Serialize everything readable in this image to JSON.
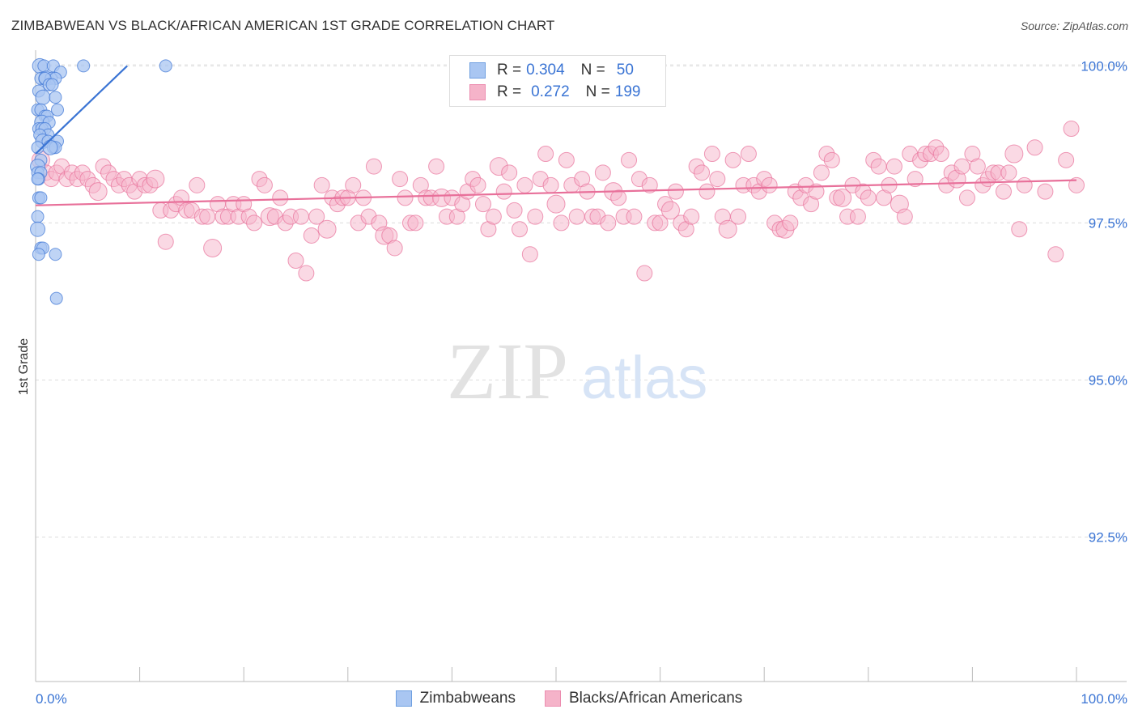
{
  "title": "ZIMBABWEAN VS BLACK/AFRICAN AMERICAN 1ST GRADE CORRELATION CHART",
  "source": "Source: ZipAtlas.com",
  "watermark": {
    "zip": "ZIP",
    "atlas": "atlas"
  },
  "colors": {
    "blue": "#3a74d4",
    "blue_fill": "#a9c6f2",
    "pink": "#e8709a",
    "pink_fill": "#f5b3c9",
    "grid": "#dcdcdc",
    "axis_label": "#3a74d4"
  },
  "legend": {
    "rows": [
      {
        "r_label": "R =",
        "r_value": "0.304",
        "n_label": "N =",
        "n_value": "50"
      },
      {
        "r_label": "R =",
        "r_value": "0.272",
        "n_label": "N =",
        "n_value": "199"
      }
    ]
  },
  "chart_data": {
    "type": "scatter",
    "title": "ZIMBABWEAN VS BLACK/AFRICAN AMERICAN 1ST GRADE CORRELATION CHART",
    "xlabel": "",
    "ylabel": "1st Grade",
    "xlim": [
      0,
      100
    ],
    "ylim": [
      90.2,
      100.25
    ],
    "x_tick_labels": [
      "0.0%",
      "100.0%"
    ],
    "y_ticks": [
      {
        "value": 100.0,
        "label": "100.0%"
      },
      {
        "value": 97.5,
        "label": "97.5%"
      },
      {
        "value": 95.0,
        "label": "95.0%"
      },
      {
        "value": 92.5,
        "label": "92.5%"
      }
    ],
    "series": [
      {
        "name": "Zimbabweans",
        "color": "#3a74d4",
        "fill": "#a9c6f2",
        "r": 0.304,
        "n": 50,
        "trend": {
          "x": [
            0.0,
            8.8
          ],
          "y": [
            98.6,
            100.0
          ]
        },
        "points": [
          [
            0.4,
            100.0
          ],
          [
            0.8,
            100.0
          ],
          [
            1.7,
            100.0
          ],
          [
            2.4,
            99.9
          ],
          [
            4.6,
            100.0
          ],
          [
            12.5,
            100.0
          ],
          [
            0.5,
            99.8
          ],
          [
            1.0,
            99.8
          ],
          [
            1.5,
            99.8
          ],
          [
            1.9,
            99.8
          ],
          [
            0.9,
            99.8
          ],
          [
            1.3,
            99.7
          ],
          [
            1.6,
            99.7
          ],
          [
            0.3,
            99.6
          ],
          [
            0.7,
            99.5
          ],
          [
            1.9,
            99.5
          ],
          [
            0.2,
            99.3
          ],
          [
            0.5,
            99.3
          ],
          [
            0.9,
            99.2
          ],
          [
            1.1,
            99.2
          ],
          [
            2.1,
            99.3
          ],
          [
            0.6,
            99.1
          ],
          [
            1.3,
            99.1
          ],
          [
            0.3,
            99.0
          ],
          [
            0.6,
            99.0
          ],
          [
            0.9,
            99.0
          ],
          [
            1.2,
            98.9
          ],
          [
            0.4,
            98.9
          ],
          [
            0.7,
            98.8
          ],
          [
            1.2,
            98.8
          ],
          [
            2.1,
            98.8
          ],
          [
            0.2,
            98.7
          ],
          [
            1.7,
            98.7
          ],
          [
            1.9,
            98.7
          ],
          [
            0.5,
            98.5
          ],
          [
            0.2,
            98.4
          ],
          [
            0.2,
            98.3
          ],
          [
            0.5,
            98.3
          ],
          [
            0.3,
            98.2
          ],
          [
            0.3,
            97.9
          ],
          [
            0.5,
            97.9
          ],
          [
            0.2,
            97.6
          ],
          [
            0.2,
            97.4
          ],
          [
            0.5,
            97.1
          ],
          [
            0.7,
            97.1
          ],
          [
            0.3,
            97.0
          ],
          [
            1.9,
            97.0
          ],
          [
            2.0,
            96.3
          ],
          [
            0.2,
            98.2
          ],
          [
            1.4,
            98.7
          ]
        ]
      },
      {
        "name": "Blacks/African Americans",
        "color": "#e8709a",
        "fill": "#f5b3c9",
        "r": 0.272,
        "n": 199,
        "trend": {
          "x": [
            0.0,
            100.0
          ],
          "y": [
            97.78,
            98.18
          ]
        },
        "points": [
          [
            0.5,
            98.5
          ],
          [
            1.0,
            98.3
          ],
          [
            1.5,
            98.2
          ],
          [
            2.0,
            98.3
          ],
          [
            2.5,
            98.4
          ],
          [
            3.0,
            98.2
          ],
          [
            3.5,
            98.3
          ],
          [
            4.0,
            98.2
          ],
          [
            4.5,
            98.3
          ],
          [
            5.0,
            98.2
          ],
          [
            5.5,
            98.1
          ],
          [
            6.0,
            98.0
          ],
          [
            6.5,
            98.4
          ],
          [
            7.0,
            98.3
          ],
          [
            7.5,
            98.2
          ],
          [
            8.0,
            98.1
          ],
          [
            8.5,
            98.2
          ],
          [
            9.0,
            98.1
          ],
          [
            9.5,
            98.0
          ],
          [
            10.0,
            98.2
          ],
          [
            10.5,
            98.1
          ],
          [
            11.0,
            98.1
          ],
          [
            11.5,
            98.2
          ],
          [
            12.0,
            97.7
          ],
          [
            12.5,
            97.2
          ],
          [
            13.0,
            97.7
          ],
          [
            13.5,
            97.8
          ],
          [
            14.0,
            97.9
          ],
          [
            14.5,
            97.7
          ],
          [
            15.0,
            97.7
          ],
          [
            15.5,
            98.1
          ],
          [
            16.0,
            97.6
          ],
          [
            16.5,
            97.6
          ],
          [
            17.0,
            97.1
          ],
          [
            17.5,
            97.8
          ],
          [
            18.0,
            97.6
          ],
          [
            18.5,
            97.6
          ],
          [
            19.0,
            97.8
          ],
          [
            19.5,
            97.6
          ],
          [
            20.0,
            97.8
          ],
          [
            20.5,
            97.6
          ],
          [
            21.0,
            97.5
          ],
          [
            21.5,
            98.2
          ],
          [
            22.0,
            98.1
          ],
          [
            22.5,
            97.6
          ],
          [
            23.0,
            97.6
          ],
          [
            23.5,
            97.9
          ],
          [
            24.0,
            97.5
          ],
          [
            24.5,
            97.6
          ],
          [
            25.0,
            96.9
          ],
          [
            25.5,
            97.6
          ],
          [
            26.0,
            96.7
          ],
          [
            26.5,
            97.3
          ],
          [
            27.0,
            97.6
          ],
          [
            27.5,
            98.1
          ],
          [
            28.0,
            97.4
          ],
          [
            28.5,
            97.9
          ],
          [
            29.0,
            97.8
          ],
          [
            29.5,
            97.9
          ],
          [
            30.0,
            97.9
          ],
          [
            30.5,
            98.1
          ],
          [
            31.0,
            97.5
          ],
          [
            31.5,
            97.9
          ],
          [
            32.0,
            97.6
          ],
          [
            32.5,
            98.4
          ],
          [
            33.0,
            97.5
          ],
          [
            33.5,
            97.3
          ],
          [
            34.0,
            97.3
          ],
          [
            34.5,
            97.1
          ],
          [
            35.0,
            98.2
          ],
          [
            35.5,
            97.9
          ],
          [
            36.0,
            97.5
          ],
          [
            36.5,
            97.5
          ],
          [
            37.0,
            98.1
          ],
          [
            37.5,
            97.9
          ],
          [
            38.0,
            97.9
          ],
          [
            38.5,
            98.4
          ],
          [
            39.0,
            97.9
          ],
          [
            39.5,
            97.6
          ],
          [
            40.0,
            97.9
          ],
          [
            40.5,
            97.6
          ],
          [
            41.0,
            97.8
          ],
          [
            41.5,
            98.0
          ],
          [
            42.0,
            98.2
          ],
          [
            42.5,
            98.1
          ],
          [
            43.0,
            97.8
          ],
          [
            43.5,
            97.4
          ],
          [
            44.0,
            97.6
          ],
          [
            44.5,
            98.4
          ],
          [
            45.0,
            98.0
          ],
          [
            45.5,
            98.3
          ],
          [
            46.0,
            97.7
          ],
          [
            46.5,
            97.4
          ],
          [
            47.0,
            98.1
          ],
          [
            47.5,
            97.0
          ],
          [
            48.0,
            97.6
          ],
          [
            48.5,
            98.2
          ],
          [
            49.0,
            98.6
          ],
          [
            49.5,
            98.1
          ],
          [
            50.0,
            97.8
          ],
          [
            50.5,
            97.5
          ],
          [
            51.0,
            98.5
          ],
          [
            51.5,
            98.1
          ],
          [
            52.0,
            97.6
          ],
          [
            52.5,
            98.2
          ],
          [
            53.0,
            98.0
          ],
          [
            53.5,
            97.6
          ],
          [
            54.0,
            97.6
          ],
          [
            54.5,
            98.3
          ],
          [
            55.0,
            97.5
          ],
          [
            55.5,
            98.0
          ],
          [
            56.0,
            97.9
          ],
          [
            56.5,
            97.6
          ],
          [
            57.0,
            98.5
          ],
          [
            57.5,
            97.6
          ],
          [
            58.0,
            98.2
          ],
          [
            58.5,
            96.7
          ],
          [
            59.0,
            98.1
          ],
          [
            59.5,
            97.5
          ],
          [
            60.0,
            97.5
          ],
          [
            60.5,
            97.8
          ],
          [
            61.0,
            97.7
          ],
          [
            61.5,
            98.0
          ],
          [
            62.0,
            97.5
          ],
          [
            62.5,
            97.4
          ],
          [
            63.0,
            97.6
          ],
          [
            63.5,
            98.4
          ],
          [
            64.0,
            98.3
          ],
          [
            64.5,
            98.0
          ],
          [
            65.0,
            98.6
          ],
          [
            65.5,
            98.2
          ],
          [
            66.0,
            97.6
          ],
          [
            66.5,
            97.4
          ],
          [
            67.0,
            98.5
          ],
          [
            67.5,
            97.6
          ],
          [
            68.0,
            98.1
          ],
          [
            68.5,
            98.6
          ],
          [
            69.0,
            98.1
          ],
          [
            69.5,
            98.0
          ],
          [
            70.0,
            98.2
          ],
          [
            70.5,
            98.1
          ],
          [
            71.0,
            97.5
          ],
          [
            71.5,
            97.4
          ],
          [
            72.0,
            97.4
          ],
          [
            72.5,
            97.5
          ],
          [
            73.0,
            98.0
          ],
          [
            73.5,
            97.9
          ],
          [
            74.0,
            98.1
          ],
          [
            74.5,
            97.8
          ],
          [
            75.0,
            98.0
          ],
          [
            75.5,
            98.3
          ],
          [
            76.0,
            98.6
          ],
          [
            76.5,
            98.5
          ],
          [
            77.0,
            97.9
          ],
          [
            77.5,
            97.9
          ],
          [
            78.0,
            97.6
          ],
          [
            78.5,
            98.1
          ],
          [
            79.0,
            97.6
          ],
          [
            79.5,
            98.0
          ],
          [
            80.0,
            97.9
          ],
          [
            80.5,
            98.5
          ],
          [
            81.0,
            98.4
          ],
          [
            81.5,
            97.9
          ],
          [
            82.0,
            98.1
          ],
          [
            82.5,
            98.4
          ],
          [
            83.0,
            97.8
          ],
          [
            83.5,
            97.6
          ],
          [
            84.0,
            98.6
          ],
          [
            84.5,
            98.2
          ],
          [
            85.0,
            98.5
          ],
          [
            85.5,
            98.6
          ],
          [
            86.0,
            98.6
          ],
          [
            86.5,
            98.7
          ],
          [
            87.0,
            98.6
          ],
          [
            87.5,
            98.1
          ],
          [
            88.0,
            98.3
          ],
          [
            88.5,
            98.2
          ],
          [
            89.0,
            98.4
          ],
          [
            89.5,
            97.9
          ],
          [
            90.0,
            98.6
          ],
          [
            90.5,
            98.4
          ],
          [
            91.0,
            98.1
          ],
          [
            91.5,
            98.2
          ],
          [
            92.0,
            98.3
          ],
          [
            92.5,
            98.3
          ],
          [
            93.0,
            98.0
          ],
          [
            93.5,
            98.3
          ],
          [
            94.0,
            98.6
          ],
          [
            94.5,
            97.4
          ],
          [
            95.0,
            98.1
          ],
          [
            96.0,
            98.7
          ],
          [
            97.0,
            98.0
          ],
          [
            98.0,
            97.0
          ],
          [
            99.0,
            98.5
          ],
          [
            99.5,
            99.0
          ],
          [
            100.0,
            98.1
          ]
        ]
      }
    ]
  }
}
